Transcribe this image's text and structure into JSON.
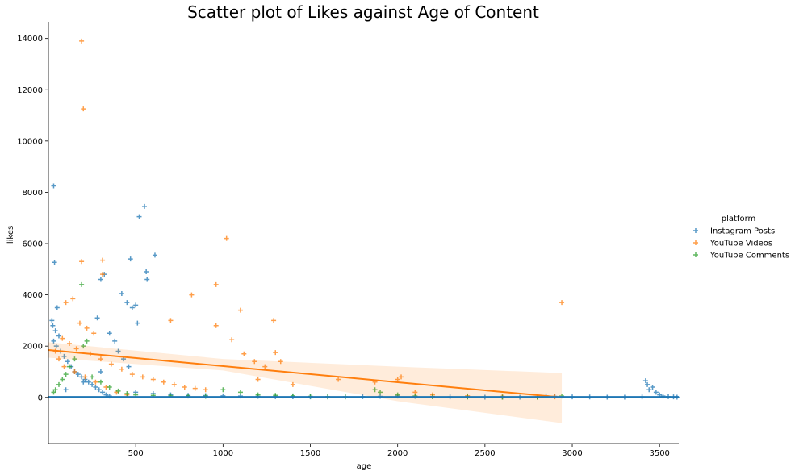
{
  "chart_data": {
    "type": "scatter",
    "title": "Scatter plot of Likes against Age of Content",
    "xlabel": "age",
    "ylabel": "likes",
    "xlim": [
      0,
      3610
    ],
    "ylim": [
      -1800,
      14650
    ],
    "x_ticks": [
      500,
      1000,
      1500,
      2000,
      2500,
      3000,
      3500
    ],
    "y_ticks": [
      0,
      2000,
      4000,
      6000,
      8000,
      10000,
      12000,
      14000
    ],
    "grid": false,
    "legend": {
      "title": "platform",
      "placement": "right",
      "entries": [
        "Instagram Posts",
        "YouTube Videos",
        "YouTube Comments"
      ]
    },
    "colors": {
      "Instagram Posts": "#1f77b4",
      "YouTube Videos": "#ff7f0e",
      "YouTube Comments": "#2ca02c"
    },
    "series": [
      {
        "name": "Instagram Posts",
        "marker": "+",
        "points": [
          [
            30,
            8250
          ],
          [
            35,
            5270
          ],
          [
            50,
            3500
          ],
          [
            20,
            3000
          ],
          [
            25,
            2800
          ],
          [
            40,
            2600
          ],
          [
            60,
            2400
          ],
          [
            30,
            2200
          ],
          [
            45,
            2000
          ],
          [
            70,
            1800
          ],
          [
            90,
            1600
          ],
          [
            110,
            1400
          ],
          [
            130,
            1200
          ],
          [
            150,
            1000
          ],
          [
            170,
            900
          ],
          [
            190,
            800
          ],
          [
            210,
            700
          ],
          [
            230,
            600
          ],
          [
            250,
            500
          ],
          [
            270,
            400
          ],
          [
            290,
            300
          ],
          [
            310,
            200
          ],
          [
            330,
            100
          ],
          [
            350,
            50
          ],
          [
            420,
            4050
          ],
          [
            450,
            3700
          ],
          [
            480,
            3500
          ],
          [
            500,
            3600
          ],
          [
            510,
            2900
          ],
          [
            560,
            4900
          ],
          [
            565,
            4600
          ],
          [
            520,
            7050
          ],
          [
            550,
            7450
          ],
          [
            610,
            5550
          ],
          [
            470,
            5400
          ],
          [
            300,
            4600
          ],
          [
            320,
            4800
          ],
          [
            280,
            3100
          ],
          [
            350,
            2500
          ],
          [
            380,
            2200
          ],
          [
            400,
            1800
          ],
          [
            430,
            1500
          ],
          [
            460,
            1200
          ],
          [
            300,
            1000
          ],
          [
            200,
            600
          ],
          [
            100,
            300
          ],
          [
            500,
            200
          ],
          [
            600,
            150
          ],
          [
            700,
            100
          ],
          [
            800,
            80
          ],
          [
            900,
            70
          ],
          [
            1000,
            60
          ],
          [
            1100,
            50
          ],
          [
            1200,
            40
          ],
          [
            1300,
            30
          ],
          [
            1400,
            25
          ],
          [
            1500,
            20
          ],
          [
            1600,
            15
          ],
          [
            1700,
            20
          ],
          [
            1800,
            30
          ],
          [
            1900,
            40
          ],
          [
            2000,
            50
          ],
          [
            2100,
            40
          ],
          [
            2200,
            30
          ],
          [
            2300,
            20
          ],
          [
            2400,
            15
          ],
          [
            2500,
            10
          ],
          [
            2600,
            10
          ],
          [
            2700,
            10
          ],
          [
            2800,
            10
          ],
          [
            2850,
            60
          ],
          [
            2900,
            40
          ],
          [
            3000,
            20
          ],
          [
            3100,
            15
          ],
          [
            3200,
            10
          ],
          [
            3300,
            10
          ],
          [
            3400,
            20
          ],
          [
            3420,
            650
          ],
          [
            3430,
            500
          ],
          [
            3440,
            300
          ],
          [
            3460,
            400
          ],
          [
            3480,
            200
          ],
          [
            3500,
            100
          ],
          [
            3520,
            50
          ],
          [
            3550,
            30
          ],
          [
            3580,
            20
          ],
          [
            3600,
            10
          ]
        ]
      },
      {
        "name": "YouTube Videos",
        "marker": "+",
        "points": [
          [
            190,
            13900
          ],
          [
            200,
            11250
          ],
          [
            1020,
            6200
          ],
          [
            190,
            5300
          ],
          [
            310,
            5350
          ],
          [
            310,
            4800
          ],
          [
            820,
            4000
          ],
          [
            960,
            4400
          ],
          [
            1100,
            3400
          ],
          [
            1290,
            3000
          ],
          [
            700,
            3000
          ],
          [
            2940,
            3700
          ],
          [
            140,
            3850
          ],
          [
            100,
            3700
          ],
          [
            180,
            2900
          ],
          [
            220,
            2700
          ],
          [
            260,
            2500
          ],
          [
            80,
            2300
          ],
          [
            120,
            2100
          ],
          [
            160,
            1900
          ],
          [
            240,
            1700
          ],
          [
            300,
            1500
          ],
          [
            360,
            1300
          ],
          [
            420,
            1100
          ],
          [
            480,
            900
          ],
          [
            540,
            800
          ],
          [
            600,
            700
          ],
          [
            660,
            600
          ],
          [
            720,
            500
          ],
          [
            780,
            400
          ],
          [
            840,
            350
          ],
          [
            900,
            300
          ],
          [
            960,
            2800
          ],
          [
            1050,
            2250
          ],
          [
            1120,
            1700
          ],
          [
            1180,
            1400
          ],
          [
            1240,
            1200
          ],
          [
            1300,
            1750
          ],
          [
            1330,
            1400
          ],
          [
            1200,
            700
          ],
          [
            1400,
            500
          ],
          [
            1660,
            700
          ],
          [
            1870,
            600
          ],
          [
            2000,
            700
          ],
          [
            2020,
            800
          ],
          [
            2100,
            200
          ],
          [
            2200,
            100
          ],
          [
            2400,
            60
          ],
          [
            2600,
            40
          ],
          [
            2800,
            30
          ],
          [
            2900,
            20
          ],
          [
            40,
            1800
          ],
          [
            60,
            1500
          ],
          [
            90,
            1200
          ],
          [
            150,
            1000
          ],
          [
            210,
            800
          ],
          [
            270,
            600
          ],
          [
            330,
            400
          ],
          [
            390,
            200
          ],
          [
            450,
            100
          ]
        ]
      },
      {
        "name": "YouTube Comments",
        "marker": "+",
        "points": [
          [
            190,
            4400
          ],
          [
            220,
            2200
          ],
          [
            200,
            2000
          ],
          [
            150,
            1500
          ],
          [
            120,
            1200
          ],
          [
            100,
            900
          ],
          [
            80,
            700
          ],
          [
            60,
            500
          ],
          [
            40,
            300
          ],
          [
            30,
            200
          ],
          [
            250,
            800
          ],
          [
            300,
            600
          ],
          [
            350,
            400
          ],
          [
            400,
            250
          ],
          [
            450,
            150
          ],
          [
            500,
            100
          ],
          [
            600,
            80
          ],
          [
            700,
            60
          ],
          [
            800,
            50
          ],
          [
            900,
            40
          ],
          [
            1000,
            300
          ],
          [
            1100,
            200
          ],
          [
            1200,
            100
          ],
          [
            1300,
            80
          ],
          [
            1400,
            60
          ],
          [
            1500,
            40
          ],
          [
            1600,
            30
          ],
          [
            1700,
            20
          ],
          [
            1870,
            300
          ],
          [
            1900,
            200
          ],
          [
            2000,
            100
          ],
          [
            2100,
            50
          ],
          [
            2200,
            30
          ],
          [
            2400,
            20
          ],
          [
            2600,
            10
          ],
          [
            2800,
            10
          ],
          [
            2940,
            50
          ]
        ]
      }
    ],
    "regression": {
      "series": "YouTube Videos",
      "line": [
        [
          0,
          1850
        ],
        [
          2940,
          0
        ]
      ],
      "ci_upper": [
        [
          0,
          2150
        ],
        [
          1000,
          1500
        ],
        [
          2000,
          1200
        ],
        [
          2940,
          950
        ]
      ],
      "ci_lower": [
        [
          0,
          1550
        ],
        [
          1000,
          1050
        ],
        [
          2000,
          -150
        ],
        [
          2940,
          -1000
        ]
      ]
    }
  }
}
